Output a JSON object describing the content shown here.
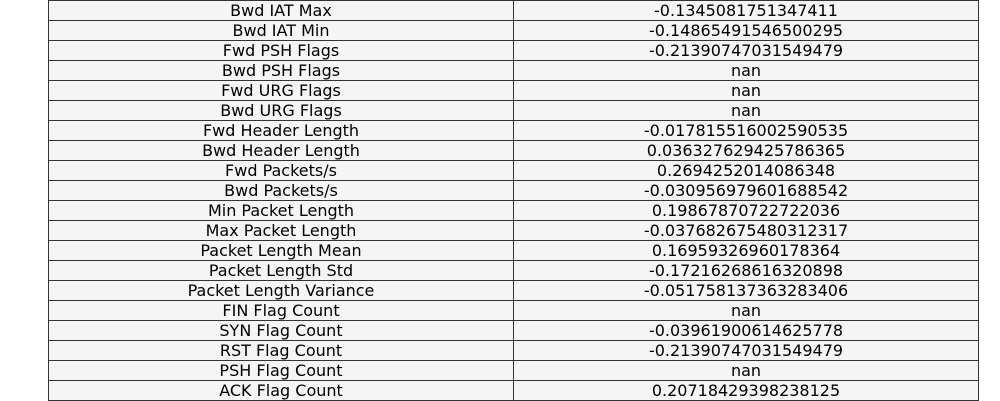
{
  "table": {
    "rows": [
      [
        "Bwd IAT Max",
        "-0.1345081751347411"
      ],
      [
        "Bwd IAT Min",
        "-0.14865491546500295"
      ],
      [
        "Fwd PSH Flags",
        "-0.21390747031549479"
      ],
      [
        "Bwd PSH Flags",
        "nan"
      ],
      [
        "Fwd URG Flags",
        "nan"
      ],
      [
        "Bwd URG Flags",
        "nan"
      ],
      [
        "Fwd Header Length",
        "-0.017815516002590535"
      ],
      [
        "Bwd Header Length",
        "0.036327629425786365"
      ],
      [
        "Fwd Packets/s",
        "0.2694252014086348"
      ],
      [
        "Bwd Packets/s",
        "-0.030956979601688542"
      ],
      [
        "Min Packet Length",
        "0.19867870722722036"
      ],
      [
        "Max Packet Length",
        "-0.037682675480312317"
      ],
      [
        "Packet Length Mean",
        "0.16959326960178364"
      ],
      [
        "Packet Length Std",
        "-0.17216268616320898"
      ],
      [
        "Packet Length Variance",
        "-0.051758137363283406"
      ],
      [
        "FIN Flag Count",
        "nan"
      ],
      [
        "SYN Flag Count",
        "-0.03961900614625778"
      ],
      [
        "RST Flag Count",
        "-0.21390747031549479"
      ],
      [
        "PSH Flag Count",
        "nan"
      ],
      [
        "ACK Flag Count",
        "0.20718429398238125"
      ]
    ]
  }
}
